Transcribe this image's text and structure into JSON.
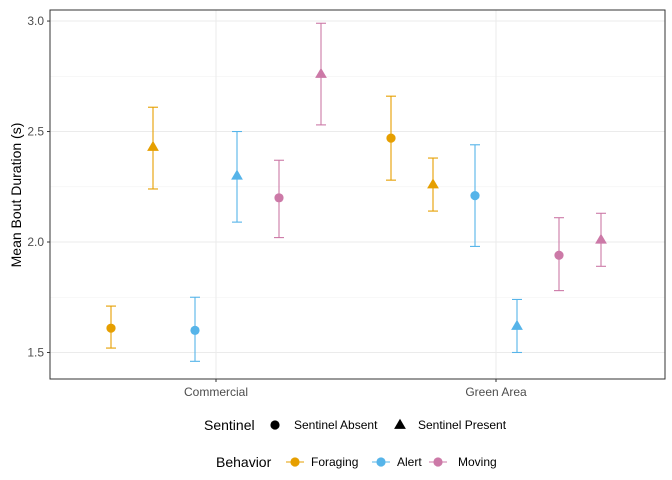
{
  "chart_data": {
    "type": "scatter",
    "title": "",
    "xlabel": "",
    "ylabel": "Mean Bout Duration (s)",
    "categories": [
      "Commercial",
      "Green Area"
    ],
    "ylim": [
      1.38,
      3.05
    ],
    "yticks": [
      1.5,
      2.0,
      2.5,
      3.0
    ],
    "ytick_labels": [
      "1.5",
      "2.0",
      "2.5",
      "3.0"
    ],
    "grid": true,
    "colors": {
      "Foraging": "#E69F00",
      "Alert": "#56B4E9",
      "Moving": "#CC79A7"
    },
    "shapes": {
      "Sentinel Absent": "circle",
      "Sentinel Present": "triangle"
    },
    "series": [
      {
        "category": "Commercial",
        "behavior": "Foraging",
        "sentinel": "Sentinel Absent",
        "y": 1.61,
        "lower": 1.52,
        "upper": 1.71
      },
      {
        "category": "Commercial",
        "behavior": "Foraging",
        "sentinel": "Sentinel Present",
        "y": 2.43,
        "lower": 2.24,
        "upper": 2.61
      },
      {
        "category": "Commercial",
        "behavior": "Alert",
        "sentinel": "Sentinel Absent",
        "y": 1.6,
        "lower": 1.46,
        "upper": 1.75
      },
      {
        "category": "Commercial",
        "behavior": "Alert",
        "sentinel": "Sentinel Present",
        "y": 2.3,
        "lower": 2.09,
        "upper": 2.5
      },
      {
        "category": "Commercial",
        "behavior": "Moving",
        "sentinel": "Sentinel Absent",
        "y": 2.2,
        "lower": 2.02,
        "upper": 2.37
      },
      {
        "category": "Commercial",
        "behavior": "Moving",
        "sentinel": "Sentinel Present",
        "y": 2.76,
        "lower": 2.53,
        "upper": 2.99
      },
      {
        "category": "Green Area",
        "behavior": "Foraging",
        "sentinel": "Sentinel Absent",
        "y": 2.47,
        "lower": 2.28,
        "upper": 2.66
      },
      {
        "category": "Green Area",
        "behavior": "Foraging",
        "sentinel": "Sentinel Present",
        "y": 2.26,
        "lower": 2.14,
        "upper": 2.38
      },
      {
        "category": "Green Area",
        "behavior": "Alert",
        "sentinel": "Sentinel Absent",
        "y": 2.21,
        "lower": 1.98,
        "upper": 2.44
      },
      {
        "category": "Green Area",
        "behavior": "Alert",
        "sentinel": "Sentinel Present",
        "y": 1.62,
        "lower": 1.5,
        "upper": 1.74
      },
      {
        "category": "Green Area",
        "behavior": "Moving",
        "sentinel": "Sentinel Absent",
        "y": 1.94,
        "lower": 1.78,
        "upper": 2.11
      },
      {
        "category": "Green Area",
        "behavior": "Moving",
        "sentinel": "Sentinel Present",
        "y": 2.01,
        "lower": 1.89,
        "upper": 2.13
      }
    ],
    "legends": [
      {
        "title": "Sentinel",
        "entries": [
          {
            "label": "Sentinel Absent",
            "shape": "circle",
            "color": "#000000"
          },
          {
            "label": "Sentinel Present",
            "shape": "triangle",
            "color": "#000000"
          }
        ]
      },
      {
        "title": "Behavior",
        "entries": [
          {
            "label": "Foraging",
            "shape": "circle-line",
            "color": "#E69F00"
          },
          {
            "label": "Alert",
            "shape": "circle-line",
            "color": "#56B4E9"
          },
          {
            "label": "Moving",
            "shape": "circle-line",
            "color": "#CC79A7"
          }
        ]
      }
    ],
    "legend_position": "bottom"
  }
}
